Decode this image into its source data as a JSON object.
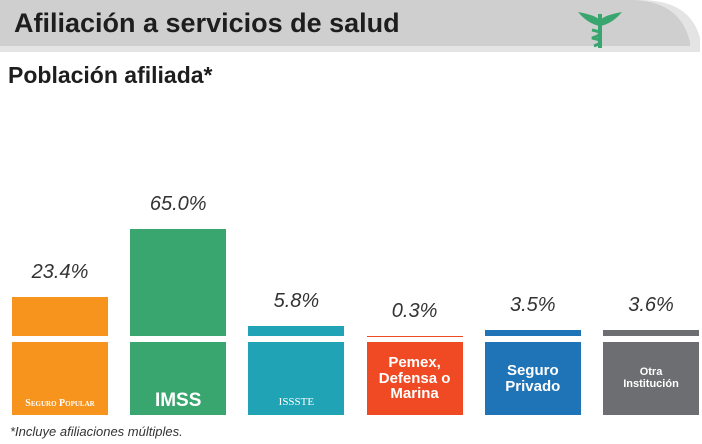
{
  "chart_data": {
    "type": "bar",
    "title": "Afiliación a servicios de salud",
    "subtitle": "Población afiliada*",
    "categories": [
      "Seguro Popular",
      "IMSS",
      "ISSSTE",
      "Pemex, Defensa o Marina",
      "Seguro Privado",
      "Otra Institución"
    ],
    "values": [
      23.4,
      65.0,
      5.8,
      0.3,
      3.5,
      3.6
    ],
    "value_labels": [
      "23.4%",
      "65.0%",
      "5.8%",
      "0.3%",
      "3.5%",
      "3.6%"
    ],
    "colors": [
      "#f7941d",
      "#3aa66f",
      "#1fa3b5",
      "#ef4a23",
      "#1f73b7",
      "#6d6e71"
    ],
    "footnote": "*Incluye afiliaciones múltiples."
  }
}
